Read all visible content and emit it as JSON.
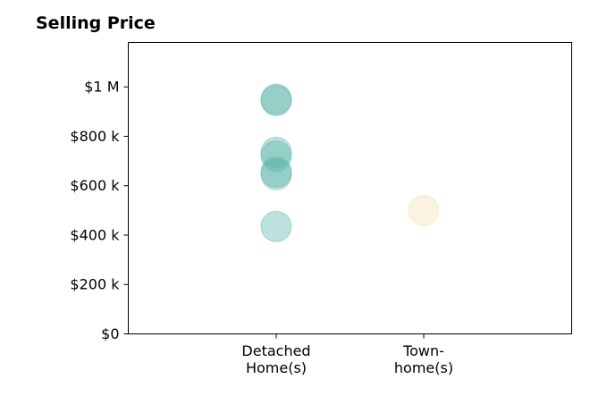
{
  "chart_data": {
    "type": "scatter",
    "title": "Selling Price",
    "xlabel": "",
    "ylabel": "",
    "categories": [
      "Detached\nHome(s)",
      "Town-\nhome(s)"
    ],
    "ylim": [
      0,
      1180000
    ],
    "yticks": [
      0,
      200000,
      400000,
      600000,
      800000,
      1000000
    ],
    "ytick_labels": [
      "$0",
      "$200 k",
      "$400 k",
      "$600 k",
      "$800 k",
      "$1 M"
    ],
    "grid": false,
    "series": [
      {
        "category": "Detached\nHome(s)",
        "color": "#5ab4a7",
        "values": [
          950000,
          945000,
          735000,
          720000,
          655000,
          645000,
          435000
        ]
      },
      {
        "category": "Town-\nhome(s)",
        "color": "#f3e0b5",
        "values": [
          500000
        ]
      }
    ]
  }
}
